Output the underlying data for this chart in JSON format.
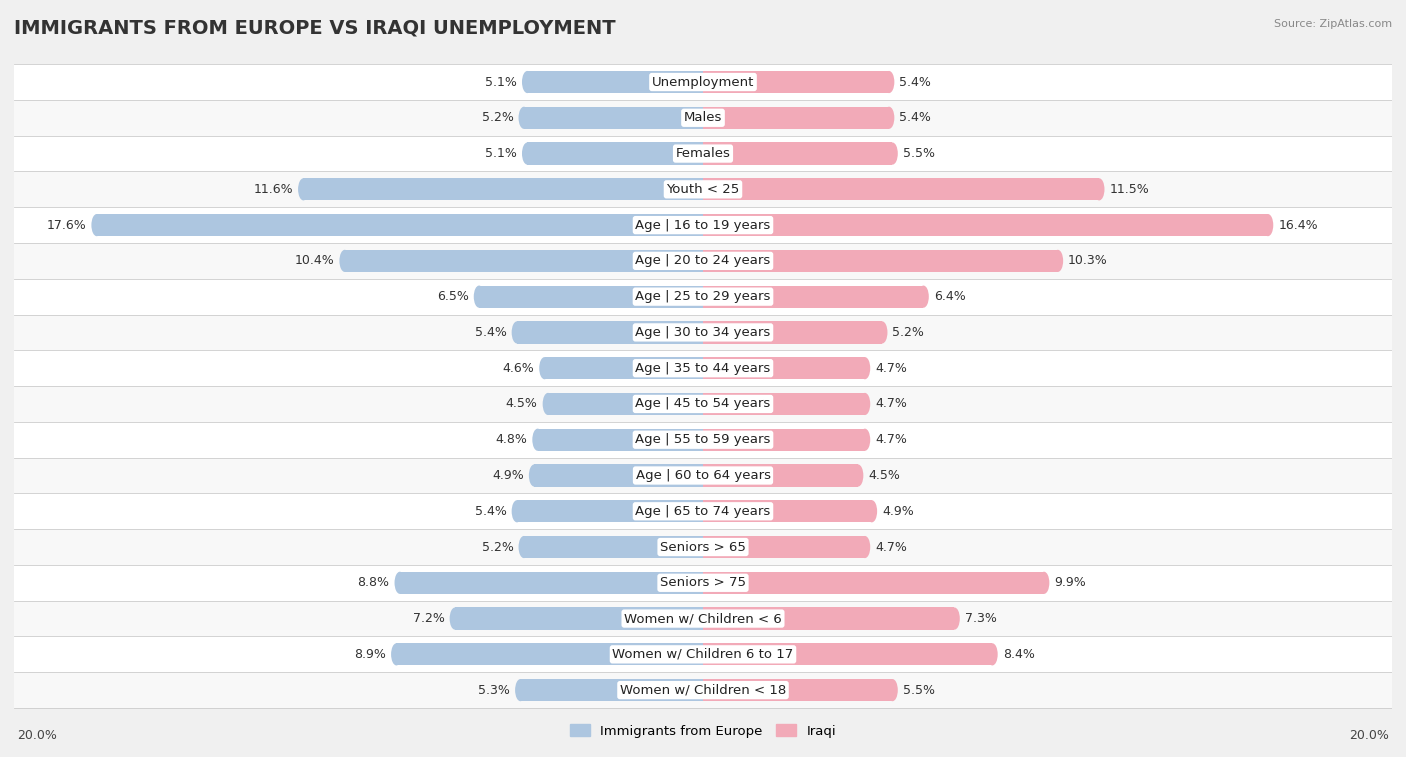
{
  "title": "IMMIGRANTS FROM EUROPE VS IRAQI UNEMPLOYMENT",
  "source": "Source: ZipAtlas.com",
  "categories": [
    "Unemployment",
    "Males",
    "Females",
    "Youth < 25",
    "Age | 16 to 19 years",
    "Age | 20 to 24 years",
    "Age | 25 to 29 years",
    "Age | 30 to 34 years",
    "Age | 35 to 44 years",
    "Age | 45 to 54 years",
    "Age | 55 to 59 years",
    "Age | 60 to 64 years",
    "Age | 65 to 74 years",
    "Seniors > 65",
    "Seniors > 75",
    "Women w/ Children < 6",
    "Women w/ Children 6 to 17",
    "Women w/ Children < 18"
  ],
  "europe_values": [
    5.1,
    5.2,
    5.1,
    11.6,
    17.6,
    10.4,
    6.5,
    5.4,
    4.6,
    4.5,
    4.8,
    4.9,
    5.4,
    5.2,
    8.8,
    7.2,
    8.9,
    5.3
  ],
  "iraqi_values": [
    5.4,
    5.4,
    5.5,
    11.5,
    16.4,
    10.3,
    6.4,
    5.2,
    4.7,
    4.7,
    4.7,
    4.5,
    4.9,
    4.7,
    9.9,
    7.3,
    8.4,
    5.5
  ],
  "europe_color": "#adc6e0",
  "iraqi_color": "#f2aab8",
  "max_value": 20.0,
  "background_color": "#f0f0f0",
  "row_bg_even": "#f8f8f8",
  "row_bg_odd": "#ffffff",
  "title_fontsize": 14,
  "label_fontsize": 9.5,
  "value_fontsize": 9,
  "legend_europe": "Immigrants from Europe",
  "legend_iraqi": "Iraqi"
}
